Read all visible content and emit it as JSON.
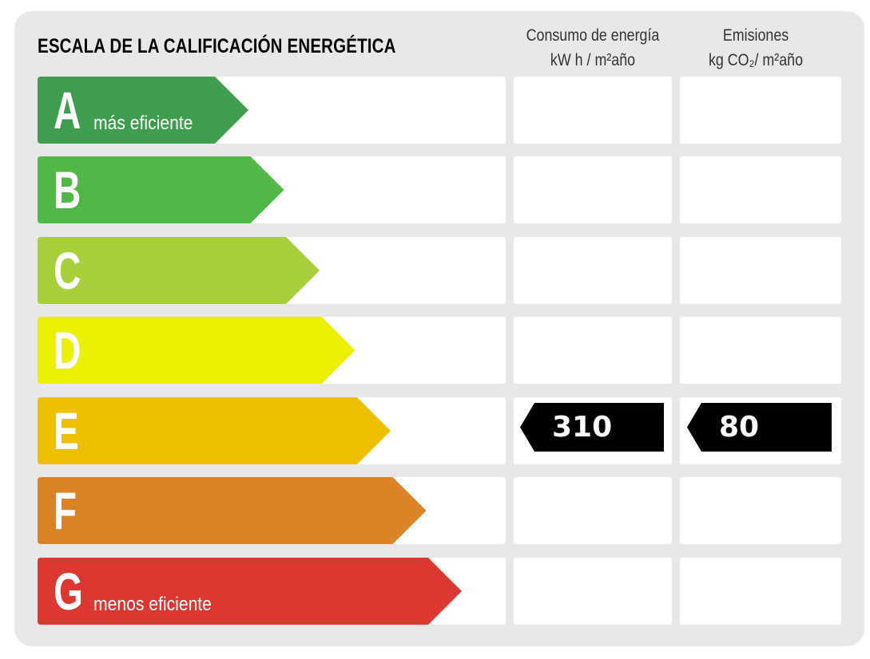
{
  "title": "ESCALA DE LA CALIFICACIÓN ENERGÉTICA",
  "columns": [
    {
      "line1": "Consumo de energía",
      "line2": "kW h / m²año"
    },
    {
      "line1": "Emisiones",
      "line2": "kg CO₂/ m²año"
    }
  ],
  "ratings": [
    {
      "letter": "A",
      "label": "más eficiente",
      "color": "#3f9d50"
    },
    {
      "letter": "B",
      "label": "",
      "color": "#51b848"
    },
    {
      "letter": "C",
      "label": "",
      "color": "#a7cf3b"
    },
    {
      "letter": "D",
      "label": "",
      "color": "#ebef00"
    },
    {
      "letter": "E",
      "label": "",
      "color": "#eec000"
    },
    {
      "letter": "F",
      "label": "",
      "color": "#dc8226"
    },
    {
      "letter": "G",
      "label": "menos eficiente",
      "color": "#dc3731"
    }
  ],
  "current": {
    "rating": "E",
    "consumption": "310",
    "emissions": "80",
    "tag_color": "#000000"
  }
}
